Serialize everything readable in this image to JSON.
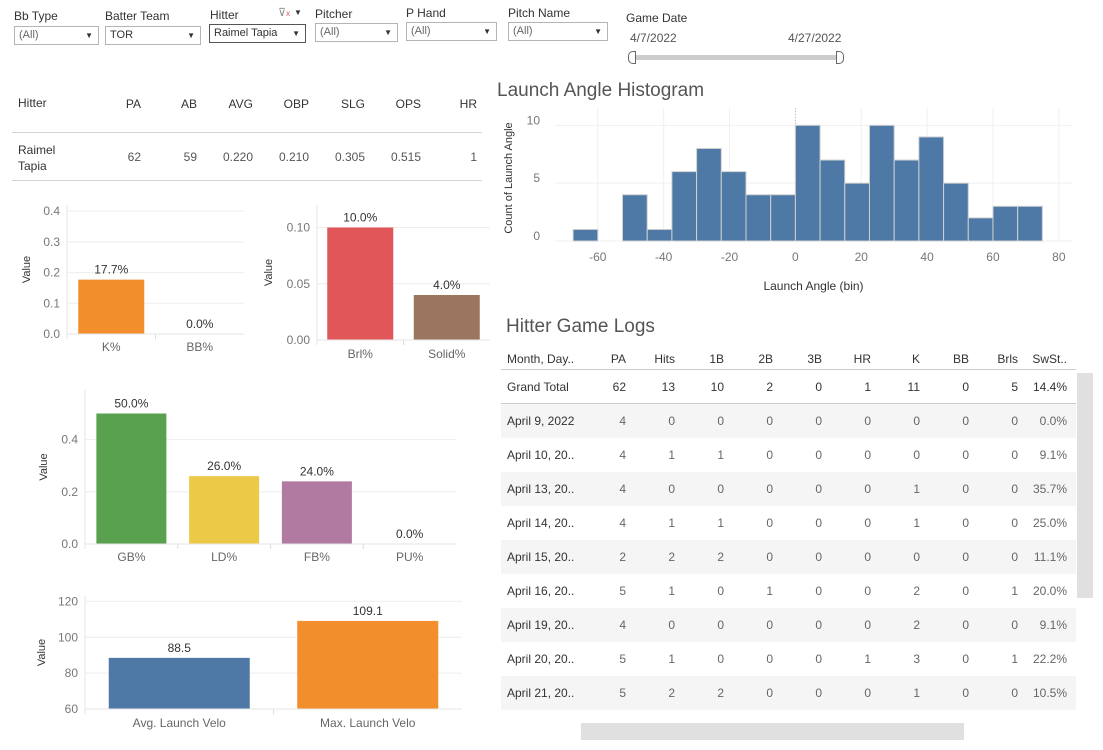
{
  "filters": {
    "bb_type": {
      "label": "Bb Type",
      "value": "(All)"
    },
    "batter_team": {
      "label": "Batter Team",
      "value": "TOR"
    },
    "hitter": {
      "label": "Hitter",
      "value": "Raimel Tapia"
    },
    "pitcher": {
      "label": "Pitcher",
      "value": "(All)"
    },
    "p_hand": {
      "label": "P Hand",
      "value": "(All)"
    },
    "pitch_name": {
      "label": "Pitch Name",
      "value": "(All)"
    },
    "game_date": {
      "label": "Game Date",
      "start": "4/7/2022",
      "end": "4/27/2022"
    }
  },
  "hitter_table": {
    "headers": [
      "Hitter",
      "PA",
      "AB",
      "AVG",
      "OBP",
      "SLG",
      "OPS",
      "HR"
    ],
    "row": [
      "Raimel\nTapia",
      "62",
      "59",
      "0.220",
      "0.210",
      "0.305",
      "0.515",
      "1"
    ]
  },
  "histogram": {
    "title": "Launch Angle Histogram"
  },
  "game_logs": {
    "title": "Hitter Game Logs",
    "headers": [
      "Month, Day..",
      "PA",
      "Hits",
      "1B",
      "2B",
      "3B",
      "HR",
      "K",
      "BB",
      "Brls",
      "SwSt.."
    ],
    "rows": [
      [
        "Grand Total",
        "62",
        "13",
        "10",
        "2",
        "0",
        "1",
        "11",
        "0",
        "5",
        "14.4%"
      ],
      [
        "April 9, 2022",
        "4",
        "0",
        "0",
        "0",
        "0",
        "0",
        "0",
        "0",
        "0",
        "0.0%"
      ],
      [
        "April 10, 20..",
        "4",
        "1",
        "1",
        "0",
        "0",
        "0",
        "0",
        "0",
        "0",
        "9.1%"
      ],
      [
        "April 13, 20..",
        "4",
        "0",
        "0",
        "0",
        "0",
        "0",
        "1",
        "0",
        "0",
        "35.7%"
      ],
      [
        "April 14, 20..",
        "4",
        "1",
        "1",
        "0",
        "0",
        "0",
        "1",
        "0",
        "0",
        "25.0%"
      ],
      [
        "April 15, 20..",
        "2",
        "2",
        "2",
        "0",
        "0",
        "0",
        "0",
        "0",
        "0",
        "11.1%"
      ],
      [
        "April 16, 20..",
        "5",
        "1",
        "0",
        "1",
        "0",
        "0",
        "2",
        "0",
        "1",
        "20.0%"
      ],
      [
        "April 19, 20..",
        "4",
        "0",
        "0",
        "0",
        "0",
        "0",
        "2",
        "0",
        "0",
        "9.1%"
      ],
      [
        "April 20, 20..",
        "5",
        "1",
        "0",
        "0",
        "0",
        "1",
        "3",
        "0",
        "1",
        "22.2%"
      ],
      [
        "April 21, 20..",
        "5",
        "2",
        "2",
        "0",
        "0",
        "0",
        "1",
        "0",
        "0",
        "10.5%"
      ]
    ]
  },
  "chart_data": [
    {
      "type": "bar",
      "id": "k_bb",
      "ylabel": "Value",
      "categories": [
        "K%",
        "BB%"
      ],
      "values": [
        0.177,
        0.0
      ],
      "labels": [
        "17.7%",
        "0.0%"
      ],
      "colors": [
        "#f28e2b",
        "#f28e2b"
      ],
      "ylim": [
        0,
        0.42
      ],
      "ticks": [
        0.0,
        0.1,
        0.2,
        0.3,
        0.4
      ],
      "tick_labels": [
        "0.0",
        "0.1",
        "0.2",
        "0.3",
        "0.4"
      ]
    },
    {
      "type": "bar",
      "id": "brl_solid",
      "ylabel": "Value",
      "categories": [
        "Brl%",
        "Solid%"
      ],
      "values": [
        0.1,
        0.04
      ],
      "labels": [
        "10.0%",
        "4.0%"
      ],
      "colors": [
        "#e15759",
        "#9c755f"
      ],
      "ylim": [
        0,
        0.12
      ],
      "ticks": [
        0.0,
        0.05,
        0.1
      ],
      "tick_labels": [
        "0.00",
        "0.05",
        "0.10"
      ]
    },
    {
      "type": "bar",
      "id": "batted_ball",
      "ylabel": "Value",
      "categories": [
        "GB%",
        "LD%",
        "FB%",
        "PU%"
      ],
      "values": [
        0.5,
        0.26,
        0.24,
        0.0
      ],
      "labels": [
        "50.0%",
        "26.0%",
        "24.0%",
        "0.0%"
      ],
      "colors": [
        "#59a14f",
        "#edc948",
        "#b07aa1",
        "#b07aa1"
      ],
      "ylim": [
        0,
        0.59
      ],
      "ticks": [
        0.0,
        0.2,
        0.4
      ],
      "tick_labels": [
        "0.0",
        "0.2",
        "0.4"
      ]
    },
    {
      "type": "bar",
      "id": "launch_velo",
      "ylabel": "Value",
      "categories": [
        "Avg. Launch Velo",
        "Max. Launch Velo"
      ],
      "values": [
        88.5,
        109.1
      ],
      "labels": [
        "88.5",
        "109.1"
      ],
      "colors": [
        "#4e79a7",
        "#f28e2b"
      ],
      "ylim": [
        60,
        123
      ],
      "ticks": [
        60,
        80,
        100,
        120
      ],
      "tick_labels": [
        "60",
        "80",
        "100",
        "120"
      ]
    },
    {
      "type": "histogram",
      "id": "launch_angle",
      "xlabel": "Launch Angle (bin)",
      "ylabel": "Count of Launch Angle",
      "bin_width": 7.5,
      "bin_starts": [
        -67.5,
        -60,
        -52.5,
        -45,
        -37.5,
        -30,
        -22.5,
        -15,
        -7.5,
        0,
        7.5,
        15,
        22.5,
        30,
        37.5,
        45,
        52.5,
        60,
        67.5
      ],
      "values": [
        1,
        0,
        4,
        1,
        6,
        8,
        6,
        4,
        4,
        10,
        7,
        5,
        10,
        7,
        9,
        5,
        2,
        3,
        3
      ],
      "color": "#4e79a7",
      "xlim": [
        -73,
        84
      ],
      "ylim": [
        0,
        11.5
      ],
      "xticks": [
        -60,
        -40,
        -20,
        0,
        20,
        40,
        60,
        80
      ],
      "yticks": [
        0,
        5,
        10
      ]
    }
  ]
}
